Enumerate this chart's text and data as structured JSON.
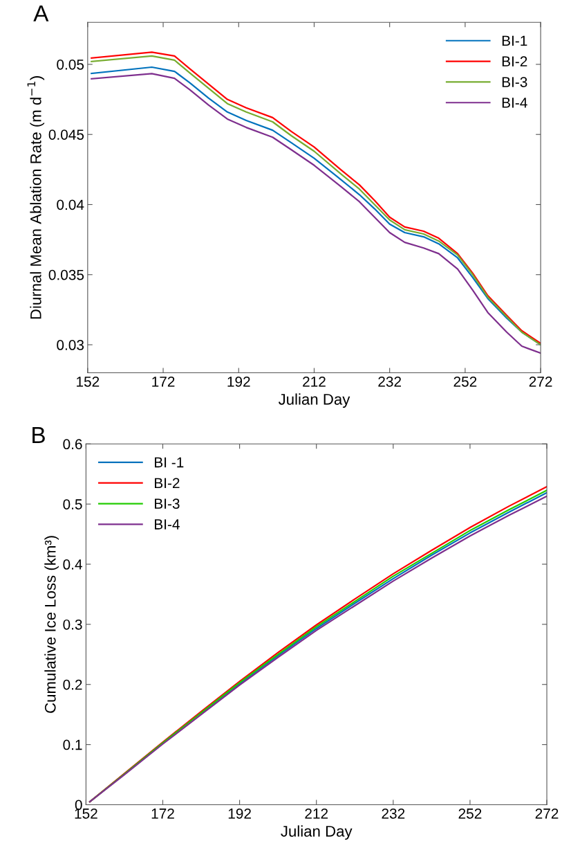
{
  "chart_data": [
    {
      "type": "line",
      "xlabel": "Julian Day",
      "ylabel": "Diurnal Mean Ablation Rate (m d$^{−1}$)",
      "annotations": [
        "A"
      ],
      "x": [
        153,
        169,
        175,
        179,
        184,
        189,
        194,
        201,
        206,
        212,
        219,
        224,
        228,
        232,
        236,
        241,
        245,
        250,
        254,
        258,
        263,
        267,
        272
      ],
      "series": [
        {
          "name": "BI-1",
          "color": "#0072bd",
          "values": [
            0.04935,
            0.0498,
            0.0495,
            0.0487,
            0.0476,
            0.0466,
            0.046,
            0.0453,
            0.0444,
            0.0433,
            0.0418,
            0.0407,
            0.0397,
            0.0386,
            0.038,
            0.0377,
            0.0372,
            0.0362,
            0.0348,
            0.0333,
            0.0319,
            0.0309,
            0.03
          ]
        },
        {
          "name": "BI-2",
          "color": "#ff0000",
          "values": [
            0.05045,
            0.05087,
            0.0506,
            0.0497,
            0.0486,
            0.0475,
            0.0469,
            0.0462,
            0.0452,
            0.0441,
            0.0425,
            0.0414,
            0.0403,
            0.0391,
            0.0384,
            0.0381,
            0.0376,
            0.0365,
            0.0351,
            0.0335,
            0.0321,
            0.031,
            0.0301
          ]
        },
        {
          "name": "BI-3",
          "color": "#77ac30",
          "values": [
            0.0502,
            0.0506,
            0.0503,
            0.0494,
            0.0483,
            0.0472,
            0.0466,
            0.0459,
            0.0449,
            0.0438,
            0.0422,
            0.0411,
            0.04,
            0.0389,
            0.0382,
            0.0379,
            0.0374,
            0.0364,
            0.035,
            0.0334,
            0.032,
            0.0309,
            0.03
          ]
        },
        {
          "name": "BI-4",
          "color": "#7e2f8e",
          "values": [
            0.04897,
            0.04934,
            0.049,
            0.0482,
            0.0471,
            0.0461,
            0.0455,
            0.0448,
            0.0439,
            0.0428,
            0.0413,
            0.0402,
            0.0391,
            0.038,
            0.0373,
            0.0369,
            0.0365,
            0.0354,
            0.0339,
            0.0323,
            0.0309,
            0.0299,
            0.0294
          ]
        }
      ],
      "xlim": [
        152,
        272
      ],
      "xticks": [
        152,
        172,
        192,
        212,
        232,
        252,
        272
      ],
      "ylim": [
        0.028,
        0.053
      ],
      "yticks": [
        0.03,
        0.035,
        0.04,
        0.045,
        0.05
      ],
      "grid": false,
      "legend": "top right",
      "marker": "none",
      "line_style": "solid"
    },
    {
      "type": "line",
      "xlabel": "Julian Day",
      "ylabel": "Cumulative Ice Loss (km³)",
      "annotations": [
        "B"
      ],
      "x": [
        153,
        162,
        172,
        182,
        192,
        202,
        212,
        222,
        232,
        242,
        252,
        262,
        272
      ],
      "series": [
        {
          "name": "BI -1",
          "color": "#0072bd",
          "values": [
            null,
            null,
            null,
            0.152,
            0.201,
            0.248,
            0.293,
            0.335,
            0.376,
            0.415,
            0.452,
            0.486,
            0.519
          ]
        },
        {
          "name": "BI-2",
          "color": "#ff0000",
          "values": [
            0.005,
            0.052,
            0.104,
            0.155,
            0.205,
            0.253,
            0.299,
            0.342,
            0.384,
            0.423,
            0.461,
            0.496,
            0.529
          ]
        },
        {
          "name": "BI-3",
          "color": "#22cc00",
          "values": [
            0.005,
            0.051,
            0.103,
            0.153,
            0.203,
            0.25,
            0.296,
            0.338,
            0.38,
            0.418,
            0.456,
            0.49,
            0.523
          ]
        },
        {
          "name": "BI-4",
          "color": "#7e2f8e",
          "values": [
            0.005,
            0.05,
            0.101,
            0.15,
            0.199,
            0.245,
            0.29,
            0.331,
            0.372,
            0.41,
            0.447,
            0.481,
            0.513
          ]
        }
      ],
      "xlim": [
        152,
        272
      ],
      "xticks": [
        152,
        172,
        192,
        212,
        232,
        252,
        272
      ],
      "ylim": [
        0,
        0.6
      ],
      "yticks": [
        0,
        0.1,
        0.2,
        0.3,
        0.4,
        0.5,
        0.6
      ],
      "grid": false,
      "legend": "top left",
      "marker": "none",
      "line_style": "solid"
    }
  ]
}
